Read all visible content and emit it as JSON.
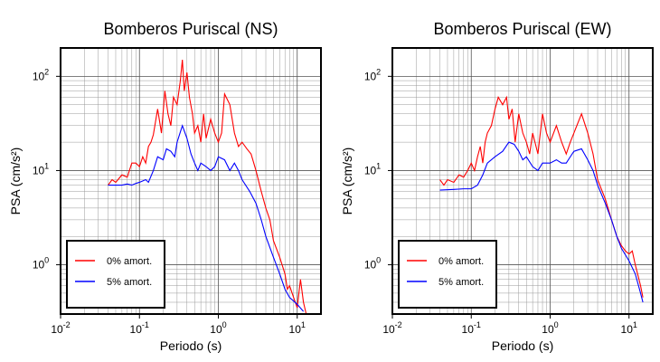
{
  "chart_data": [
    {
      "type": "line",
      "title": "Bomberos Puriscal (NS)",
      "x_label": "Periodo (s)",
      "y_label": "PSA (cm/s²)",
      "log_x": true,
      "log_y": true,
      "grid": true,
      "legend": "lower left",
      "xlim": [
        0.01,
        20
      ],
      "ylim": [
        0.3,
        200
      ],
      "xticks": [
        {
          "value": 0.01,
          "label": "10",
          "power": "-2"
        },
        {
          "value": 0.1,
          "label": "10",
          "power": "-1"
        },
        {
          "value": 1,
          "label": "10",
          "power": "0"
        },
        {
          "value": 10,
          "label": "10",
          "power": "1"
        }
      ],
      "yticks": [
        {
          "value": 1,
          "label": "10",
          "power": "0"
        },
        {
          "value": 10,
          "label": "10",
          "power": "1"
        },
        {
          "value": 100,
          "label": "10",
          "power": "2"
        }
      ],
      "xminorticks": [
        0.02,
        0.03,
        0.04,
        0.05,
        0.06,
        0.07,
        0.08,
        0.09,
        0.2,
        0.3,
        0.4,
        0.5,
        0.6,
        0.7,
        0.8,
        0.9,
        2,
        3,
        4,
        5,
        6,
        7,
        8,
        9
      ],
      "yminorticks": [
        0.4,
        0.5,
        0.6,
        0.7,
        0.8,
        0.9,
        2,
        3,
        4,
        5,
        6,
        7,
        8,
        9,
        20,
        30,
        40,
        50,
        60,
        70,
        80,
        90
      ],
      "series": [
        {
          "name": "0% amort.",
          "color": "#ff0000",
          "x": [
            0.04,
            0.045,
            0.05,
            0.06,
            0.07,
            0.08,
            0.09,
            0.1,
            0.11,
            0.12,
            0.13,
            0.14,
            0.15,
            0.17,
            0.19,
            0.21,
            0.23,
            0.25,
            0.27,
            0.3,
            0.33,
            0.35,
            0.37,
            0.4,
            0.43,
            0.47,
            0.5,
            0.55,
            0.6,
            0.65,
            0.7,
            0.8,
            0.9,
            1.0,
            1.1,
            1.2,
            1.4,
            1.6,
            1.8,
            2.0,
            2.3,
            2.6,
            3.0,
            3.5,
            4.0,
            4.5,
            5,
            6,
            7,
            7.5,
            8,
            9,
            10,
            11,
            12,
            13
          ],
          "values": [
            7,
            8,
            7.5,
            9,
            8.5,
            12,
            12,
            11,
            14,
            12,
            18,
            20,
            24,
            45,
            25,
            70,
            40,
            30,
            60,
            50,
            90,
            150,
            70,
            110,
            60,
            40,
            25,
            30,
            20,
            40,
            22,
            35,
            25,
            20,
            25,
            65,
            50,
            25,
            18,
            20,
            17,
            15,
            10,
            6,
            4,
            3,
            1.8,
            1.2,
            0.8,
            0.55,
            0.6,
            0.45,
            0.35,
            0.7,
            0.4,
            0.3
          ]
        },
        {
          "name": "5% amort.",
          "color": "#0000ff",
          "x": [
            0.04,
            0.05,
            0.06,
            0.07,
            0.08,
            0.09,
            0.1,
            0.12,
            0.13,
            0.15,
            0.17,
            0.2,
            0.22,
            0.25,
            0.28,
            0.3,
            0.35,
            0.4,
            0.45,
            0.5,
            0.55,
            0.6,
            0.7,
            0.8,
            0.9,
            1.0,
            1.2,
            1.4,
            1.6,
            1.8,
            2.0,
            2.5,
            3,
            3.5,
            4,
            5,
            6,
            7,
            8,
            10,
            12
          ],
          "values": [
            7,
            7,
            7,
            7.2,
            7,
            7.3,
            7.5,
            8,
            7.5,
            10,
            14,
            13,
            17,
            16,
            14,
            20,
            30,
            22,
            15,
            12,
            10,
            12,
            11,
            10,
            11,
            14,
            13,
            10,
            12,
            10,
            8,
            6,
            4.5,
            3,
            2,
            1.2,
            0.8,
            0.55,
            0.45,
            0.38,
            0.32
          ]
        }
      ]
    },
    {
      "type": "line",
      "title": "Bomberos Puriscal (EW)",
      "x_label": "Periodo (s)",
      "y_label": "PSA (cm/s²)",
      "log_x": true,
      "log_y": true,
      "grid": true,
      "legend": "lower left",
      "xlim": [
        0.01,
        20
      ],
      "ylim": [
        0.3,
        200
      ],
      "xticks": [
        {
          "value": 0.01,
          "label": "10",
          "power": "-2"
        },
        {
          "value": 0.1,
          "label": "10",
          "power": "-1"
        },
        {
          "value": 1,
          "label": "10",
          "power": "0"
        },
        {
          "value": 10,
          "label": "10",
          "power": "1"
        }
      ],
      "yticks": [
        {
          "value": 1,
          "label": "10",
          "power": "0"
        },
        {
          "value": 10,
          "label": "10",
          "power": "1"
        },
        {
          "value": 100,
          "label": "10",
          "power": "2"
        }
      ],
      "xminorticks": [
        0.02,
        0.03,
        0.04,
        0.05,
        0.06,
        0.07,
        0.08,
        0.09,
        0.2,
        0.3,
        0.4,
        0.5,
        0.6,
        0.7,
        0.8,
        0.9,
        2,
        3,
        4,
        5,
        6,
        7,
        8,
        9
      ],
      "yminorticks": [
        0.4,
        0.5,
        0.6,
        0.7,
        0.8,
        0.9,
        2,
        3,
        4,
        5,
        6,
        7,
        8,
        9,
        20,
        30,
        40,
        50,
        60,
        70,
        80,
        90
      ],
      "series": [
        {
          "name": "0% amort.",
          "color": "#ff0000",
          "x": [
            0.04,
            0.045,
            0.05,
            0.06,
            0.07,
            0.08,
            0.09,
            0.1,
            0.11,
            0.12,
            0.13,
            0.14,
            0.15,
            0.16,
            0.18,
            0.2,
            0.22,
            0.25,
            0.28,
            0.3,
            0.33,
            0.36,
            0.4,
            0.45,
            0.5,
            0.55,
            0.6,
            0.7,
            0.8,
            0.9,
            1.0,
            1.2,
            1.4,
            1.6,
            1.8,
            2.0,
            2.5,
            3,
            3.5,
            4,
            5,
            6,
            7,
            8,
            9,
            10,
            11,
            12,
            14,
            15
          ],
          "values": [
            8,
            7,
            8,
            7.5,
            9,
            8.5,
            10,
            12,
            10,
            14,
            18,
            12,
            20,
            25,
            30,
            45,
            60,
            50,
            60,
            35,
            45,
            20,
            40,
            25,
            20,
            15,
            25,
            15,
            40,
            25,
            20,
            30,
            20,
            15,
            20,
            25,
            40,
            25,
            15,
            8,
            5,
            3,
            2,
            1.6,
            1.4,
            1.3,
            1.4,
            1,
            0.6,
            0.45
          ]
        },
        {
          "name": "5% amort.",
          "color": "#0000ff",
          "x": [
            0.04,
            0.06,
            0.08,
            0.1,
            0.12,
            0.14,
            0.16,
            0.2,
            0.25,
            0.3,
            0.35,
            0.4,
            0.45,
            0.5,
            0.6,
            0.7,
            0.8,
            0.9,
            1.0,
            1.2,
            1.4,
            1.6,
            1.8,
            2.0,
            2.5,
            3,
            3.5,
            4,
            5,
            6,
            7,
            8,
            10,
            12,
            14,
            15
          ],
          "values": [
            6.2,
            6.3,
            6.4,
            6.4,
            7,
            9,
            12,
            14,
            16,
            20,
            19,
            16,
            13,
            14,
            11,
            10,
            12,
            12,
            12,
            13,
            12,
            12,
            14,
            16,
            17,
            13,
            10,
            7,
            4.5,
            3,
            2,
            1.5,
            1.1,
            0.8,
            0.5,
            0.4
          ]
        }
      ]
    }
  ]
}
